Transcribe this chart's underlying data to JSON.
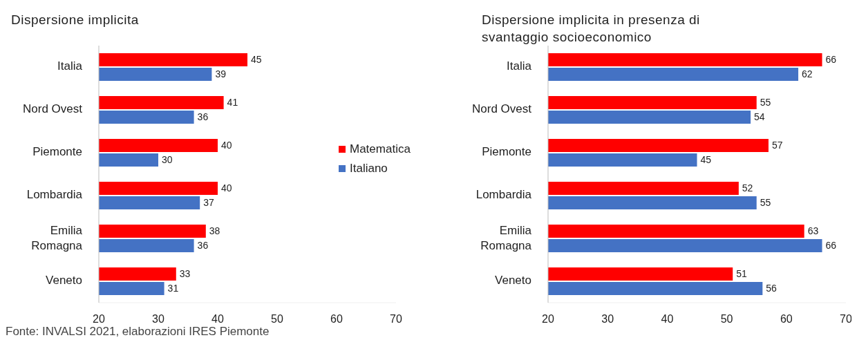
{
  "chart_data": [
    {
      "type": "bar",
      "orientation": "horizontal",
      "title": "Dispersione implicita",
      "categories": [
        "Italia",
        "Nord Ovest",
        "Piemonte",
        "Lombardia",
        "Emilia Romagna",
        "Veneto"
      ],
      "series": [
        {
          "name": "Matematica",
          "color": "#ff0000",
          "values": [
            45,
            41,
            40,
            40,
            38,
            33
          ]
        },
        {
          "name": "Italiano",
          "color": "#4472c4",
          "values": [
            39,
            36,
            30,
            37,
            36,
            31
          ]
        }
      ],
      "xlim": [
        20,
        70
      ],
      "xticks": [
        20,
        30,
        40,
        50,
        60,
        70
      ],
      "data_labels": true,
      "grid": false,
      "legend": "right",
      "annotations": [
        "Fonte: INVALSI 2021, elaborazioni IRES Piemonte"
      ]
    },
    {
      "type": "bar",
      "orientation": "horizontal",
      "title": "Dispersione implicita in presenza di svantaggio socioeconomico",
      "categories": [
        "Italia",
        "Nord Ovest",
        "Piemonte",
        "Lombardia",
        "Emilia Romagna",
        "Veneto"
      ],
      "series": [
        {
          "color": "#ff0000",
          "values": [
            66,
            55,
            57,
            52,
            63,
            51
          ]
        },
        {
          "color": "#4472c4",
          "values": [
            62,
            54,
            45,
            55,
            66,
            56
          ]
        }
      ],
      "xlim": [
        20,
        70
      ],
      "xticks": [
        20,
        30,
        40,
        50,
        60,
        70
      ],
      "data_labels": true,
      "grid": false,
      "legend": false
    }
  ]
}
